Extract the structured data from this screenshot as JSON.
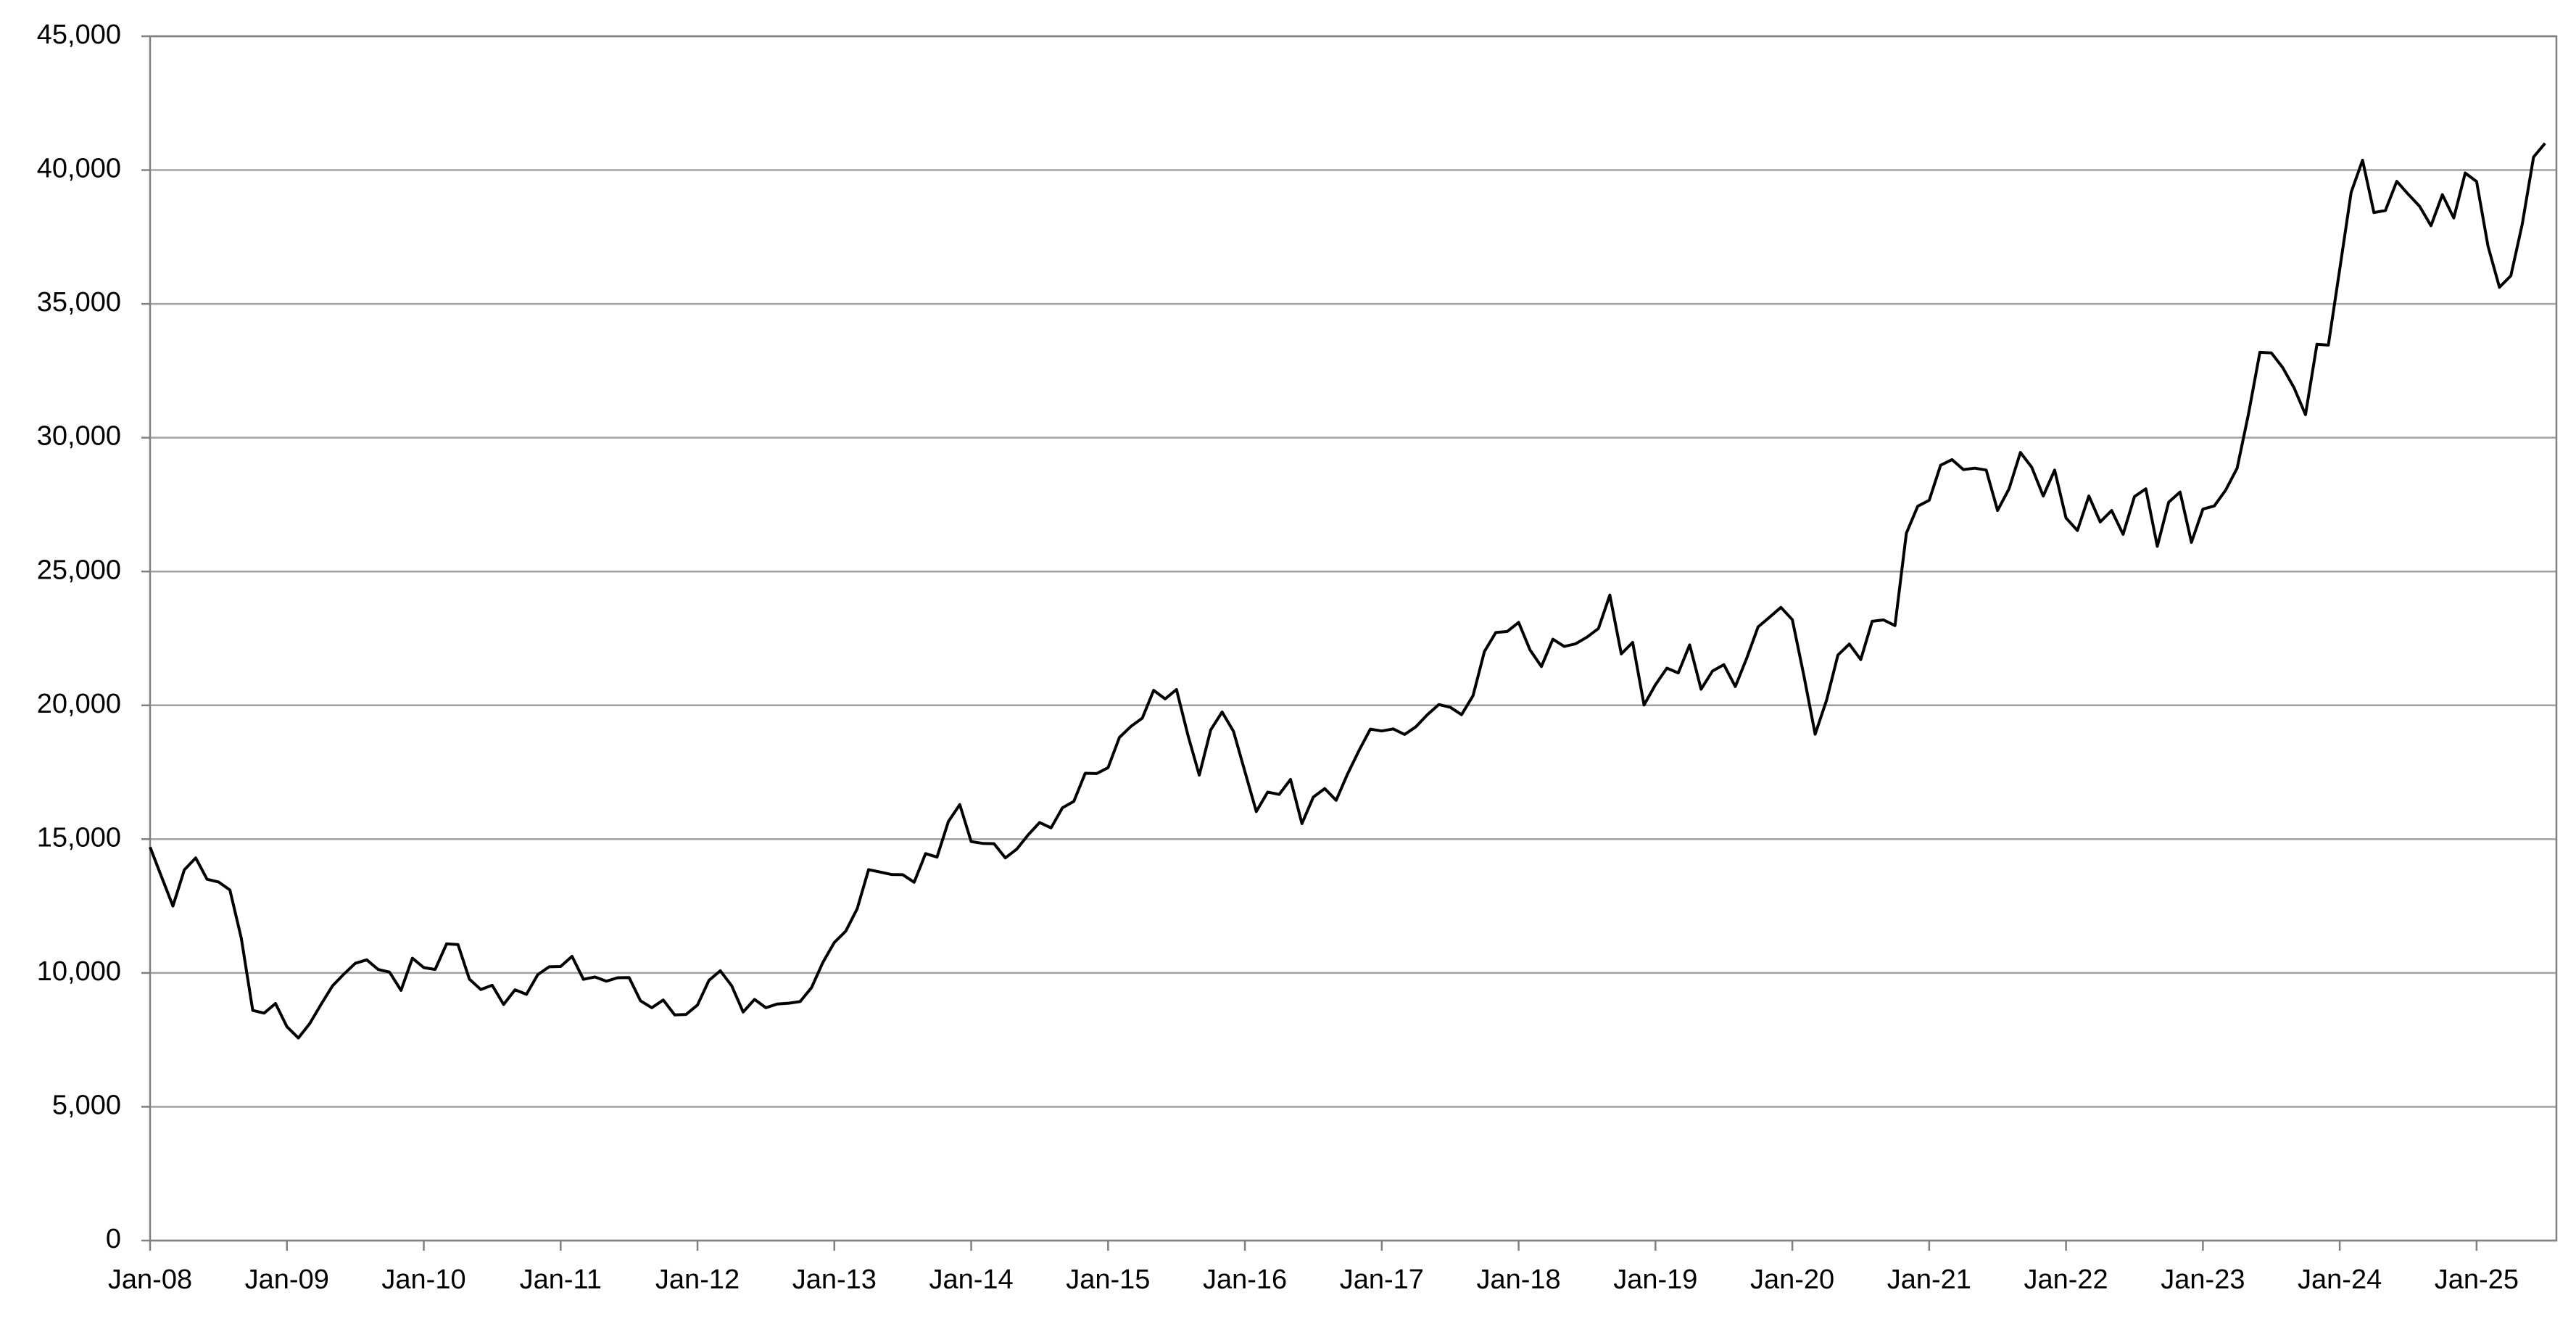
{
  "chart_data": {
    "type": "line",
    "x": [
      "2008-01",
      "2008-02",
      "2008-03",
      "2008-04",
      "2008-05",
      "2008-06",
      "2008-07",
      "2008-08",
      "2008-09",
      "2008-10",
      "2008-11",
      "2008-12",
      "2009-01",
      "2009-02",
      "2009-03",
      "2009-04",
      "2009-05",
      "2009-06",
      "2009-07",
      "2009-08",
      "2009-09",
      "2009-10",
      "2009-11",
      "2009-12",
      "2010-01",
      "2010-02",
      "2010-03",
      "2010-04",
      "2010-05",
      "2010-06",
      "2010-07",
      "2010-08",
      "2010-09",
      "2010-10",
      "2010-11",
      "2010-12",
      "2011-01",
      "2011-02",
      "2011-03",
      "2011-04",
      "2011-05",
      "2011-06",
      "2011-07",
      "2011-08",
      "2011-09",
      "2011-10",
      "2011-11",
      "2011-12",
      "2012-01",
      "2012-02",
      "2012-03",
      "2012-04",
      "2012-05",
      "2012-06",
      "2012-07",
      "2012-08",
      "2012-09",
      "2012-10",
      "2012-11",
      "2012-12",
      "2013-01",
      "2013-02",
      "2013-03",
      "2013-04",
      "2013-05",
      "2013-06",
      "2013-07",
      "2013-08",
      "2013-09",
      "2013-10",
      "2013-11",
      "2013-12",
      "2014-01",
      "2014-02",
      "2014-03",
      "2014-04",
      "2014-05",
      "2014-06",
      "2014-07",
      "2014-08",
      "2014-09",
      "2014-10",
      "2014-11",
      "2014-12",
      "2015-01",
      "2015-02",
      "2015-03",
      "2015-04",
      "2015-05",
      "2015-06",
      "2015-07",
      "2015-08",
      "2015-09",
      "2015-10",
      "2015-11",
      "2015-12",
      "2016-01",
      "2016-02",
      "2016-03",
      "2016-04",
      "2016-05",
      "2016-06",
      "2016-07",
      "2016-08",
      "2016-09",
      "2016-10",
      "2016-11",
      "2016-12",
      "2017-01",
      "2017-02",
      "2017-03",
      "2017-04",
      "2017-05",
      "2017-06",
      "2017-07",
      "2017-08",
      "2017-09",
      "2017-10",
      "2017-11",
      "2017-12",
      "2018-01",
      "2018-02",
      "2018-03",
      "2018-04",
      "2018-05",
      "2018-06",
      "2018-07",
      "2018-08",
      "2018-09",
      "2018-10",
      "2018-11",
      "2018-12",
      "2019-01",
      "2019-02",
      "2019-03",
      "2019-04",
      "2019-05",
      "2019-06",
      "2019-07",
      "2019-08",
      "2019-09",
      "2019-10",
      "2019-11",
      "2019-12",
      "2020-01",
      "2020-02",
      "2020-03",
      "2020-04",
      "2020-05",
      "2020-06",
      "2020-07",
      "2020-08",
      "2020-09",
      "2020-10",
      "2020-11",
      "2020-12",
      "2021-01",
      "2021-02",
      "2021-03",
      "2021-04",
      "2021-05",
      "2021-06",
      "2021-07",
      "2021-08",
      "2021-09",
      "2021-10",
      "2021-11",
      "2021-12",
      "2022-01",
      "2022-02",
      "2022-03",
      "2022-04",
      "2022-05",
      "2022-06",
      "2022-07",
      "2022-08",
      "2022-09",
      "2022-10",
      "2022-11",
      "2022-12",
      "2023-01",
      "2023-02",
      "2023-03",
      "2023-04",
      "2023-05",
      "2023-06",
      "2023-07",
      "2023-08",
      "2023-09",
      "2023-10",
      "2023-11",
      "2023-12",
      "2024-01",
      "2024-02",
      "2024-03",
      "2024-04",
      "2024-05",
      "2024-06",
      "2024-07",
      "2024-08",
      "2024-09",
      "2024-10",
      "2024-11",
      "2024-12",
      "2025-01",
      "2025-02",
      "2025-03",
      "2025-04",
      "2025-05",
      "2025-06",
      "2025-07"
    ],
    "values": [
      14700,
      13600,
      12500,
      13850,
      14300,
      13500,
      13400,
      13100,
      11300,
      8600,
      8500,
      8860,
      7990,
      7570,
      8110,
      8830,
      9520,
      9960,
      10360,
      10490,
      10130,
      10030,
      9350,
      10550,
      10200,
      10130,
      11090,
      11060,
      9770,
      9380,
      9540,
      8820,
      9370,
      9200,
      9940,
      10230,
      10240,
      10620,
      9760,
      9850,
      9690,
      9820,
      9830,
      8960,
      8700,
      8990,
      8430,
      8450,
      8800,
      9720,
      10080,
      9520,
      8540,
      9010,
      8700,
      8840,
      8870,
      8930,
      9450,
      10400,
      11140,
      11560,
      12400,
      13860,
      13770,
      13680,
      13670,
      13390,
      14460,
      14330,
      15660,
      16290,
      14910,
      14840,
      14830,
      14300,
      14630,
      15160,
      15620,
      15420,
      16170,
      16410,
      17460,
      17450,
      17670,
      18800,
      19210,
      19520,
      20560,
      20240,
      20590,
      18890,
      17390,
      19080,
      19750,
      19030,
      17520,
      16030,
      16760,
      16670,
      17230,
      15580,
      16570,
      16890,
      16450,
      17430,
      18310,
      19110,
      19040,
      19120,
      18910,
      19200,
      19650,
      20030,
      19930,
      19650,
      20360,
      22010,
      22720,
      22760,
      23100,
      22070,
      21450,
      22470,
      22200,
      22300,
      22550,
      22870,
      24120,
      21920,
      22350,
      20010,
      20770,
      21390,
      21210,
      22260,
      20600,
      21280,
      21520,
      20700,
      21760,
      22930,
      23290,
      23660,
      23200,
      21140,
      18920,
      20190,
      21880,
      22290,
      21710,
      23140,
      23190,
      22980,
      26430,
      27440,
      27660,
      28970,
      29180,
      28810,
      28860,
      28790,
      27280,
      28090,
      29450,
      28890,
      27820,
      28790,
      27000,
      26530,
      27820,
      26850,
      27280,
      26390,
      27800,
      28090,
      25940,
      27590,
      27970,
      26090,
      27330,
      27450,
      28040,
      28860,
      30890,
      33190,
      33170,
      32620,
      31860,
      30860,
      33490,
      33460,
      36290,
      39170,
      40370,
      38410,
      38490,
      39580,
      39100,
      38650,
      37920,
      39080,
      38210,
      39890,
      39570,
      37160,
      35620,
      36050,
      37970,
      40490,
      41000
    ],
    "color": "#000000",
    "xlim": [
      "2008-01",
      "2025-08"
    ],
    "xticks": [
      {
        "value": "2008-01",
        "label": "Jan-08"
      },
      {
        "value": "2009-01",
        "label": "Jan-09"
      },
      {
        "value": "2010-01",
        "label": "Jan-10"
      },
      {
        "value": "2011-01",
        "label": "Jan-11"
      },
      {
        "value": "2012-01",
        "label": "Jan-12"
      },
      {
        "value": "2013-01",
        "label": "Jan-13"
      },
      {
        "value": "2014-01",
        "label": "Jan-14"
      },
      {
        "value": "2015-01",
        "label": "Jan-15"
      },
      {
        "value": "2016-01",
        "label": "Jan-16"
      },
      {
        "value": "2017-01",
        "label": "Jan-17"
      },
      {
        "value": "2018-01",
        "label": "Jan-18"
      },
      {
        "value": "2019-01",
        "label": "Jan-19"
      },
      {
        "value": "2020-01",
        "label": "Jan-20"
      },
      {
        "value": "2021-01",
        "label": "Jan-21"
      },
      {
        "value": "2022-01",
        "label": "Jan-22"
      },
      {
        "value": "2023-01",
        "label": "Jan-23"
      },
      {
        "value": "2024-01",
        "label": "Jan-24"
      },
      {
        "value": "2025-01",
        "label": "Jan-25"
      }
    ],
    "ylim": [
      0,
      45000
    ],
    "yticks": [
      0,
      {
        "value": 5000,
        "label": "5,000"
      },
      {
        "value": 10000,
        "label": "10,000"
      },
      {
        "value": 15000,
        "label": "15,000"
      },
      {
        "value": 20000,
        "label": "20,000"
      },
      {
        "value": 25000,
        "label": "25,000"
      },
      {
        "value": 30000,
        "label": "30,000"
      },
      {
        "value": 35000,
        "label": "35,000"
      },
      {
        "value": 40000,
        "label": "40,000"
      },
      {
        "value": 45000,
        "label": "45,000"
      }
    ],
    "grid": true
  }
}
